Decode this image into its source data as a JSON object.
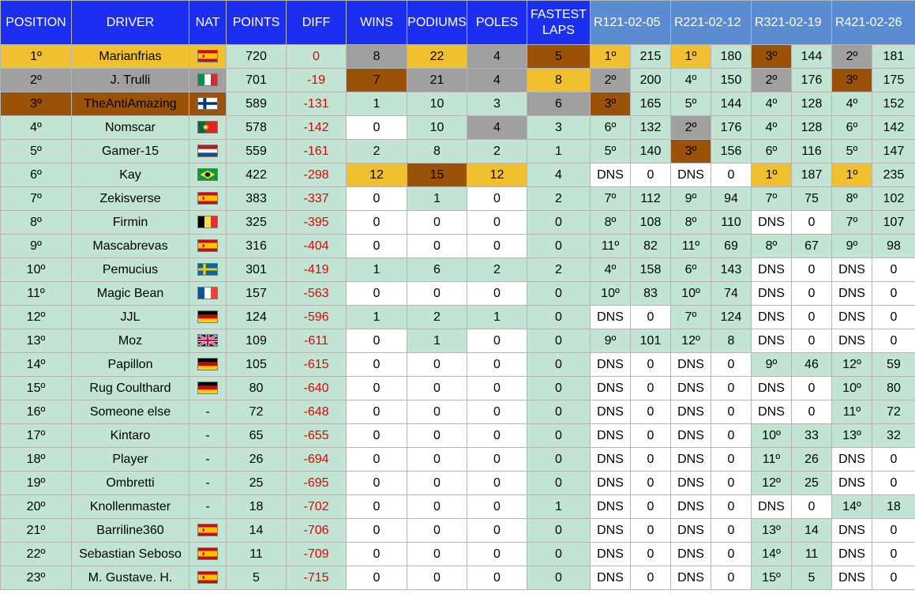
{
  "headers": {
    "position": "POSITION",
    "driver": "DRIVER",
    "nat": "NAT",
    "points": "POINTS",
    "diff": "DIFF",
    "wins": "WINS",
    "podiums": "PODIUMS",
    "poles": "POLES",
    "fastest_laps": "FASTEST\nLAPS",
    "r1": "R121-02-05",
    "r2": "R221-02-12",
    "r3": "R321-02-19",
    "r4": "R421-02-26"
  },
  "colors": {
    "header_blue": "#1c2ff0",
    "race_header_blue": "#5b8bd0",
    "row_green": "#c1e5d2",
    "gold": "#f0c030",
    "silver": "#a0a0a0",
    "bronze": "#9a5208",
    "diff_red": "#e60000"
  },
  "rows": [
    {
      "pos": "1º",
      "driver": "Marianfrias",
      "flag": "spain",
      "nat": "",
      "points": "720",
      "diff": "0",
      "wins": "8",
      "podiums": "22",
      "poles": "4",
      "fl": "5",
      "r1p": "1º",
      "r1s": "215",
      "r2p": "1º",
      "r2s": "180",
      "r3p": "3º",
      "r3s": "144",
      "r4p": "2º",
      "r4s": "181"
    },
    {
      "pos": "2º",
      "driver": "J. Trulli",
      "flag": "italy",
      "nat": "",
      "points": "701",
      "diff": "-19",
      "wins": "7",
      "podiums": "21",
      "poles": "4",
      "fl": "8",
      "r1p": "2º",
      "r1s": "200",
      "r2p": "4º",
      "r2s": "150",
      "r3p": "2º",
      "r3s": "176",
      "r4p": "3º",
      "r4s": "175"
    },
    {
      "pos": "3º",
      "driver": "TheAntiAmazing",
      "flag": "finland",
      "nat": "",
      "points": "589",
      "diff": "-131",
      "wins": "1",
      "podiums": "10",
      "poles": "3",
      "fl": "6",
      "r1p": "3º",
      "r1s": "165",
      "r2p": "5º",
      "r2s": "144",
      "r3p": "4º",
      "r3s": "128",
      "r4p": "4º",
      "r4s": "152"
    },
    {
      "pos": "4º",
      "driver": "Nomscar",
      "flag": "portugal",
      "nat": "",
      "points": "578",
      "diff": "-142",
      "wins": "0",
      "podiums": "10",
      "poles": "4",
      "fl": "3",
      "r1p": "6º",
      "r1s": "132",
      "r2p": "2º",
      "r2s": "176",
      "r3p": "4º",
      "r3s": "128",
      "r4p": "6º",
      "r4s": "142"
    },
    {
      "pos": "5º",
      "driver": "Gamer-15",
      "flag": "netherlands",
      "nat": "",
      "points": "559",
      "diff": "-161",
      "wins": "2",
      "podiums": "8",
      "poles": "2",
      "fl": "1",
      "r1p": "5º",
      "r1s": "140",
      "r2p": "3º",
      "r2s": "156",
      "r3p": "6º",
      "r3s": "116",
      "r4p": "5º",
      "r4s": "147"
    },
    {
      "pos": "6º",
      "driver": "Kay",
      "flag": "brazil",
      "nat": "",
      "points": "422",
      "diff": "-298",
      "wins": "12",
      "podiums": "15",
      "poles": "12",
      "fl": "4",
      "r1p": "DNS",
      "r1s": "0",
      "r2p": "DNS",
      "r2s": "0",
      "r3p": "1º",
      "r3s": "187",
      "r4p": "1º",
      "r4s": "235"
    },
    {
      "pos": "7º",
      "driver": "Zekisverse",
      "flag": "spain",
      "nat": "",
      "points": "383",
      "diff": "-337",
      "wins": "0",
      "podiums": "1",
      "poles": "0",
      "fl": "2",
      "r1p": "7º",
      "r1s": "112",
      "r2p": "9º",
      "r2s": "94",
      "r3p": "7º",
      "r3s": "75",
      "r4p": "8º",
      "r4s": "102"
    },
    {
      "pos": "8º",
      "driver": "Firmin",
      "flag": "belgium",
      "nat": "",
      "points": "325",
      "diff": "-395",
      "wins": "0",
      "podiums": "0",
      "poles": "0",
      "fl": "0",
      "r1p": "8º",
      "r1s": "108",
      "r2p": "8º",
      "r2s": "110",
      "r3p": "DNS",
      "r3s": "0",
      "r4p": "7º",
      "r4s": "107"
    },
    {
      "pos": "9º",
      "driver": "Mascabrevas",
      "flag": "spain",
      "nat": "",
      "points": "316",
      "diff": "-404",
      "wins": "0",
      "podiums": "0",
      "poles": "0",
      "fl": "0",
      "r1p": "11º",
      "r1s": "82",
      "r2p": "11º",
      "r2s": "69",
      "r3p": "8º",
      "r3s": "67",
      "r4p": "9º",
      "r4s": "98"
    },
    {
      "pos": "10º",
      "driver": "Pemucius",
      "flag": "sweden",
      "nat": "",
      "points": "301",
      "diff": "-419",
      "wins": "1",
      "podiums": "6",
      "poles": "2",
      "fl": "2",
      "r1p": "4º",
      "r1s": "158",
      "r2p": "6º",
      "r2s": "143",
      "r3p": "DNS",
      "r3s": "0",
      "r4p": "DNS",
      "r4s": "0"
    },
    {
      "pos": "11º",
      "driver": "Magic Bean",
      "flag": "france",
      "nat": "",
      "points": "157",
      "diff": "-563",
      "wins": "0",
      "podiums": "0",
      "poles": "0",
      "fl": "0",
      "r1p": "10º",
      "r1s": "83",
      "r2p": "10º",
      "r2s": "74",
      "r3p": "DNS",
      "r3s": "0",
      "r4p": "DNS",
      "r4s": "0"
    },
    {
      "pos": "12º",
      "driver": "JJL",
      "flag": "germany",
      "nat": "",
      "points": "124",
      "diff": "-596",
      "wins": "1",
      "podiums": "2",
      "poles": "1",
      "fl": "0",
      "r1p": "DNS",
      "r1s": "0",
      "r2p": "7º",
      "r2s": "124",
      "r3p": "DNS",
      "r3s": "0",
      "r4p": "DNS",
      "r4s": "0"
    },
    {
      "pos": "13º",
      "driver": "Moz",
      "flag": "uk",
      "nat": "",
      "points": "109",
      "diff": "-611",
      "wins": "0",
      "podiums": "1",
      "poles": "0",
      "fl": "0",
      "r1p": "9º",
      "r1s": "101",
      "r2p": "12º",
      "r2s": "8",
      "r3p": "DNS",
      "r3s": "0",
      "r4p": "DNS",
      "r4s": "0"
    },
    {
      "pos": "14º",
      "driver": "Papillon",
      "flag": "germany",
      "nat": "",
      "points": "105",
      "diff": "-615",
      "wins": "0",
      "podiums": "0",
      "poles": "0",
      "fl": "0",
      "r1p": "DNS",
      "r1s": "0",
      "r2p": "DNS",
      "r2s": "0",
      "r3p": "9º",
      "r3s": "46",
      "r4p": "12º",
      "r4s": "59"
    },
    {
      "pos": "15º",
      "driver": "Rug Coulthard",
      "flag": "germany",
      "nat": "",
      "points": "80",
      "diff": "-640",
      "wins": "0",
      "podiums": "0",
      "poles": "0",
      "fl": "0",
      "r1p": "DNS",
      "r1s": "0",
      "r2p": "DNS",
      "r2s": "0",
      "r3p": "DNS",
      "r3s": "0",
      "r4p": "10º",
      "r4s": "80"
    },
    {
      "pos": "16º",
      "driver": "Someone else",
      "flag": "",
      "nat": "-",
      "points": "72",
      "diff": "-648",
      "wins": "0",
      "podiums": "0",
      "poles": "0",
      "fl": "0",
      "r1p": "DNS",
      "r1s": "0",
      "r2p": "DNS",
      "r2s": "0",
      "r3p": "DNS",
      "r3s": "0",
      "r4p": "11º",
      "r4s": "72"
    },
    {
      "pos": "17º",
      "driver": "Kintaro",
      "flag": "",
      "nat": "-",
      "points": "65",
      "diff": "-655",
      "wins": "0",
      "podiums": "0",
      "poles": "0",
      "fl": "0",
      "r1p": "DNS",
      "r1s": "0",
      "r2p": "DNS",
      "r2s": "0",
      "r3p": "10º",
      "r3s": "33",
      "r4p": "13º",
      "r4s": "32"
    },
    {
      "pos": "18º",
      "driver": "Player",
      "flag": "",
      "nat": "-",
      "points": "26",
      "diff": "-694",
      "wins": "0",
      "podiums": "0",
      "poles": "0",
      "fl": "0",
      "r1p": "DNS",
      "r1s": "0",
      "r2p": "DNS",
      "r2s": "0",
      "r3p": "11º",
      "r3s": "26",
      "r4p": "DNS",
      "r4s": "0"
    },
    {
      "pos": "19º",
      "driver": "Ombretti",
      "flag": "",
      "nat": "-",
      "points": "25",
      "diff": "-695",
      "wins": "0",
      "podiums": "0",
      "poles": "0",
      "fl": "0",
      "r1p": "DNS",
      "r1s": "0",
      "r2p": "DNS",
      "r2s": "0",
      "r3p": "12º",
      "r3s": "25",
      "r4p": "DNS",
      "r4s": "0"
    },
    {
      "pos": "20º",
      "driver": "Knollenmaster",
      "flag": "",
      "nat": "-",
      "points": "18",
      "diff": "-702",
      "wins": "0",
      "podiums": "0",
      "poles": "0",
      "fl": "1",
      "r1p": "DNS",
      "r1s": "0",
      "r2p": "DNS",
      "r2s": "0",
      "r3p": "DNS",
      "r3s": "0",
      "r4p": "14º",
      "r4s": "18"
    },
    {
      "pos": "21º",
      "driver": "Barriline360",
      "flag": "spain",
      "nat": "",
      "points": "14",
      "diff": "-706",
      "wins": "0",
      "podiums": "0",
      "poles": "0",
      "fl": "0",
      "r1p": "DNS",
      "r1s": "0",
      "r2p": "DNS",
      "r2s": "0",
      "r3p": "13º",
      "r3s": "14",
      "r4p": "DNS",
      "r4s": "0"
    },
    {
      "pos": "22º",
      "driver": "Sebastian Seboso",
      "flag": "spain",
      "nat": "",
      "points": "11",
      "diff": "-709",
      "wins": "0",
      "podiums": "0",
      "poles": "0",
      "fl": "0",
      "r1p": "DNS",
      "r1s": "0",
      "r2p": "DNS",
      "r2s": "0",
      "r3p": "14º",
      "r3s": "11",
      "r4p": "DNS",
      "r4s": "0"
    },
    {
      "pos": "23º",
      "driver": "M. Gustave. H.",
      "flag": "spain",
      "nat": "",
      "points": "5",
      "diff": "-715",
      "wins": "0",
      "podiums": "0",
      "poles": "0",
      "fl": "0",
      "r1p": "DNS",
      "r1s": "0",
      "r2p": "DNS",
      "r2s": "0",
      "r3p": "15º",
      "r3s": "5",
      "r4p": "DNS",
      "r4s": "0"
    }
  ],
  "highlights": {
    "0": {
      "pos": "g",
      "driver": "g",
      "nat": "g",
      "wins": "s",
      "podiums": "g",
      "poles": "s",
      "fl": "b",
      "r1p": "g",
      "r2p": "g",
      "r3p": "b",
      "r4p": "s"
    },
    "1": {
      "pos": "s",
      "driver": "s",
      "nat": "s",
      "wins": "b",
      "podiums": "s",
      "poles": "s",
      "fl": "g",
      "r1p": "s",
      "r3p": "s",
      "r4p": "b"
    },
    "2": {
      "pos": "b",
      "driver": "b",
      "nat": "b",
      "fl": "s",
      "r1p": "b"
    },
    "3": {
      "wins": "white",
      "poles": "s",
      "r2p": "s"
    },
    "4": {
      "r2p": "b"
    },
    "5": {
      "wins": "g",
      "podiums": "b",
      "poles": "g",
      "r1p": "white",
      "r1s": "white",
      "r2p": "white",
      "r2s": "white",
      "r3p": "g",
      "r4p": "g"
    },
    "6": {
      "wins": "white",
      "poles": "white"
    },
    "7": {
      "wins": "white",
      "podiums": "white",
      "poles": "white",
      "r3p": "white",
      "r3s": "white"
    },
    "8": {
      "wins": "white",
      "podiums": "white",
      "poles": "white"
    },
    "9": {
      "r3p": "white",
      "r3s": "white",
      "r4p": "white",
      "r4s": "white"
    },
    "10": {
      "wins": "white",
      "podiums": "white",
      "poles": "white",
      "r3p": "white",
      "r3s": "white",
      "r4p": "white",
      "r4s": "white"
    },
    "11": {
      "r1p": "white",
      "r1s": "white",
      "r3p": "white",
      "r3s": "white",
      "r4p": "white",
      "r4s": "white"
    },
    "12": {
      "wins": "white",
      "poles": "white",
      "r3p": "white",
      "r3s": "white",
      "r4p": "white",
      "r4s": "white"
    },
    "13": {
      "wins": "white",
      "podiums": "white",
      "poles": "white",
      "r1p": "white",
      "r1s": "white",
      "r2p": "white",
      "r2s": "white"
    },
    "14": {
      "wins": "white",
      "podiums": "white",
      "poles": "white",
      "r1p": "white",
      "r1s": "white",
      "r2p": "white",
      "r2s": "white",
      "r3p": "white",
      "r3s": "white"
    },
    "15": {
      "wins": "white",
      "podiums": "white",
      "poles": "white",
      "r1p": "white",
      "r1s": "white",
      "r2p": "white",
      "r2s": "white",
      "r3p": "white",
      "r3s": "white"
    },
    "16": {
      "wins": "white",
      "podiums": "white",
      "poles": "white",
      "r1p": "white",
      "r1s": "white",
      "r2p": "white",
      "r2s": "white"
    },
    "17": {
      "wins": "white",
      "podiums": "white",
      "poles": "white",
      "r1p": "white",
      "r1s": "white",
      "r2p": "white",
      "r2s": "white",
      "r4p": "white",
      "r4s": "white"
    },
    "18": {
      "wins": "white",
      "podiums": "white",
      "poles": "white",
      "r1p": "white",
      "r1s": "white",
      "r2p": "white",
      "r2s": "white",
      "r4p": "white",
      "r4s": "white"
    },
    "19": {
      "wins": "white",
      "podiums": "white",
      "poles": "white",
      "r1p": "white",
      "r1s": "white",
      "r2p": "white",
      "r2s": "white",
      "r3p": "white",
      "r3s": "white"
    },
    "20": {
      "wins": "white",
      "podiums": "white",
      "poles": "white",
      "r1p": "white",
      "r1s": "white",
      "r2p": "white",
      "r2s": "white",
      "r4p": "white",
      "r4s": "white"
    },
    "21": {
      "wins": "white",
      "podiums": "white",
      "poles": "white",
      "r1p": "white",
      "r1s": "white",
      "r2p": "white",
      "r2s": "white",
      "r4p": "white",
      "r4s": "white"
    },
    "22": {
      "wins": "white",
      "podiums": "white",
      "poles": "white",
      "r1p": "white",
      "r1s": "white",
      "r2p": "white",
      "r2s": "white",
      "r4p": "white",
      "r4s": "white"
    }
  }
}
